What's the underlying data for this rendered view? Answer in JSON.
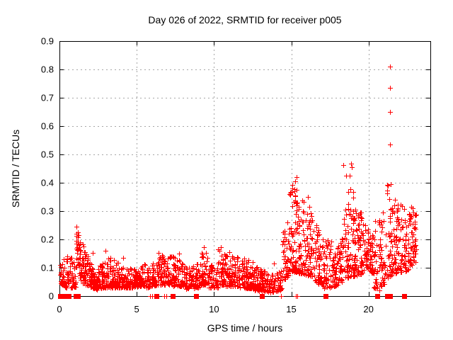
{
  "chart_data": {
    "type": "scatter",
    "title": "Day 026 of 2022, SRMTID for receiver p005",
    "xlabel": "GPS time / hours",
    "ylabel": "SRMTID / TECUs",
    "xlim": [
      0,
      24
    ],
    "ylim": [
      0,
      0.9
    ],
    "xticks": [
      {
        "v": 0,
        "label": "0"
      },
      {
        "v": 5,
        "label": "5"
      },
      {
        "v": 10,
        "label": "10"
      },
      {
        "v": 15,
        "label": "15"
      },
      {
        "v": 20,
        "label": "20"
      }
    ],
    "yticks": [
      {
        "v": 0.0,
        "label": "0"
      },
      {
        "v": 0.1,
        "label": "0.1"
      },
      {
        "v": 0.2,
        "label": "0.2"
      },
      {
        "v": 0.3,
        "label": "0.3"
      },
      {
        "v": 0.4,
        "label": "0.4"
      },
      {
        "v": 0.5,
        "label": "0.5"
      },
      {
        "v": 0.6,
        "label": "0.6"
      },
      {
        "v": 0.7,
        "label": "0.7"
      },
      {
        "v": 0.8,
        "label": "0.8"
      },
      {
        "v": 0.9,
        "label": "0.9"
      }
    ],
    "grid": true,
    "legend": "none",
    "marker": "plus",
    "marker_color": "#ff0000",
    "grid_color": "#a6a6a6",
    "frame_color": "#000000",
    "outliers": [
      [
        21.38,
        0.81
      ],
      [
        21.41,
        0.735
      ],
      [
        21.38,
        0.65
      ],
      [
        21.4,
        0.535
      ],
      [
        18.88,
        0.468
      ],
      [
        18.92,
        0.455
      ],
      [
        18.8,
        0.425
      ],
      [
        15.33,
        0.42
      ],
      [
        15.25,
        0.405
      ],
      [
        16.08,
        0.35
      ],
      [
        13.86,
        0.116
      ],
      [
        20.7,
        0.02
      ],
      [
        2.15,
        0.153
      ],
      [
        2.98,
        0.159
      ],
      [
        4.1,
        0.135
      ],
      [
        6.42,
        0.152
      ],
      [
        7.75,
        0.15
      ],
      [
        9.33,
        0.172
      ],
      [
        10.45,
        0.172
      ],
      [
        11.0,
        0.155
      ]
    ],
    "zero_plus_hours": [
      5.88,
      5.99,
      6.8,
      6.93,
      14.32,
      15.3,
      15.4
    ],
    "zero_square_hours": [
      0.06,
      0.14,
      0.27,
      0.44,
      0.6,
      1.06,
      1.17,
      6.28,
      7.32,
      8.83,
      13.1,
      17.2,
      20.58,
      21.22,
      21.4,
      22.3
    ],
    "density_segments": [
      [
        0.02,
        0.35,
        28,
        0.04,
        0.13,
        0.04,
        0.145,
        1.4
      ],
      [
        0.35,
        1.05,
        60,
        0.03,
        0.15,
        0.03,
        0.13,
        1.7
      ],
      [
        1.08,
        1.28,
        30,
        0.1,
        0.275,
        0.1,
        0.24,
        1.0
      ],
      [
        1.28,
        1.5,
        25,
        0.06,
        0.2,
        0.05,
        0.15,
        1.2
      ],
      [
        1.5,
        2.45,
        130,
        0.045,
        0.185,
        0.022,
        0.06,
        1.6
      ],
      [
        2.45,
        3.35,
        95,
        0.028,
        0.105,
        0.03,
        0.145,
        1.8
      ],
      [
        3.35,
        4.15,
        85,
        0.03,
        0.135,
        0.03,
        0.11,
        1.9
      ],
      [
        4.15,
        5.05,
        85,
        0.028,
        0.095,
        0.03,
        0.1,
        1.7
      ],
      [
        5.05,
        5.65,
        55,
        0.035,
        0.12,
        0.035,
        0.11,
        1.9
      ],
      [
        5.65,
        6.35,
        62,
        0.03,
        0.1,
        0.04,
        0.125,
        1.8
      ],
      [
        6.35,
        7.15,
        75,
        0.04,
        0.15,
        0.04,
        0.14,
        2.0
      ],
      [
        7.15,
        8.15,
        95,
        0.035,
        0.145,
        0.035,
        0.12,
        2.0
      ],
      [
        8.15,
        9.1,
        88,
        0.025,
        0.1,
        0.03,
        0.115,
        1.7
      ],
      [
        9.1,
        9.65,
        50,
        0.04,
        0.175,
        0.04,
        0.15,
        2.0
      ],
      [
        9.65,
        10.25,
        55,
        0.03,
        0.11,
        0.03,
        0.11,
        1.7
      ],
      [
        10.25,
        10.75,
        50,
        0.04,
        0.175,
        0.04,
        0.16,
        2.0
      ],
      [
        10.75,
        11.65,
        90,
        0.035,
        0.155,
        0.035,
        0.14,
        2.0
      ],
      [
        11.65,
        12.65,
        100,
        0.03,
        0.14,
        0.025,
        0.12,
        1.9
      ],
      [
        12.65,
        13.6,
        92,
        0.018,
        0.105,
        0.015,
        0.08,
        1.6
      ],
      [
        13.6,
        14.4,
        55,
        0.012,
        0.075,
        0.02,
        0.09,
        1.4
      ],
      [
        14.4,
        14.9,
        48,
        0.05,
        0.22,
        0.07,
        0.3,
        1.7
      ],
      [
        14.9,
        15.55,
        95,
        0.09,
        0.42,
        0.08,
        0.36,
        2.0
      ],
      [
        15.55,
        16.35,
        90,
        0.08,
        0.37,
        0.07,
        0.3,
        2.0
      ],
      [
        16.35,
        16.95,
        60,
        0.05,
        0.28,
        0.04,
        0.22,
        1.8
      ],
      [
        16.95,
        17.65,
        58,
        0.025,
        0.22,
        0.03,
        0.2,
        1.7
      ],
      [
        17.65,
        18.35,
        75,
        0.03,
        0.14,
        0.05,
        0.22,
        1.5
      ],
      [
        18.35,
        19.1,
        85,
        0.06,
        0.47,
        0.07,
        0.35,
        2.2
      ],
      [
        19.1,
        19.6,
        60,
        0.07,
        0.33,
        0.08,
        0.3,
        1.8
      ],
      [
        19.6,
        20.35,
        80,
        0.09,
        0.27,
        0.08,
        0.22,
        1.4
      ],
      [
        20.35,
        21.15,
        72,
        0.025,
        0.3,
        0.04,
        0.3,
        1.7
      ],
      [
        21.15,
        21.7,
        58,
        0.05,
        0.42,
        0.08,
        0.38,
        1.9
      ],
      [
        21.7,
        22.6,
        88,
        0.08,
        0.35,
        0.09,
        0.33,
        1.6
      ],
      [
        22.6,
        23.1,
        55,
        0.1,
        0.34,
        0.12,
        0.3,
        1.5
      ]
    ]
  }
}
